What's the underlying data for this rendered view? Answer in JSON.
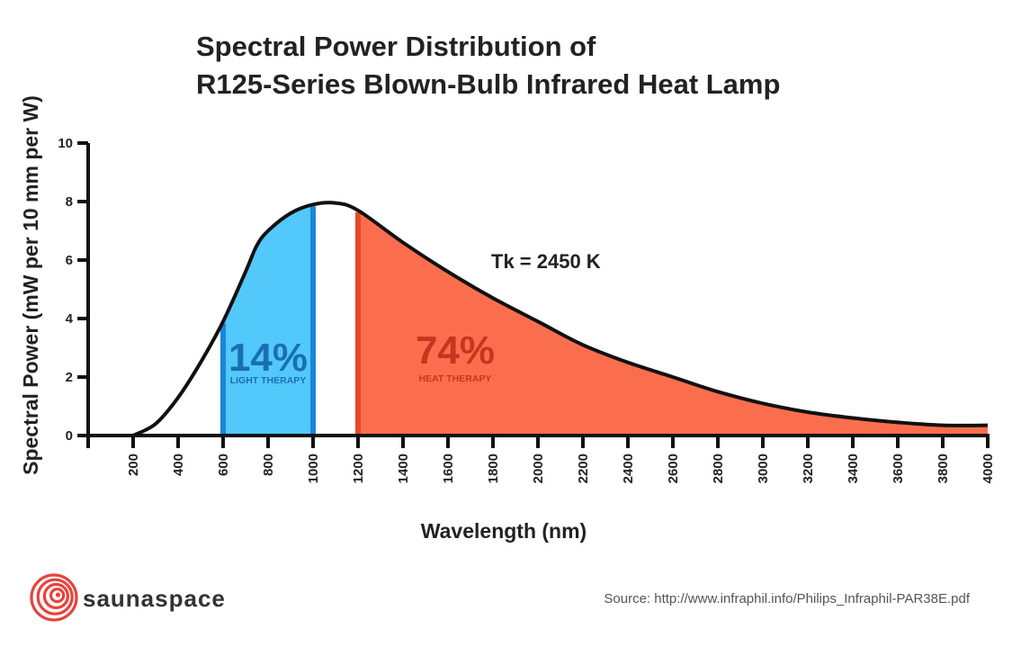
{
  "title_line1": "Spectral Power Distribution of",
  "title_line2": "R125-Series Blown-Bulb Infrared Heat Lamp",
  "annotations": {
    "light_percent": "14%",
    "light_label": "LIGHT THERAPY",
    "heat_percent": "74%",
    "heat_label": "HEAT THERAPY",
    "temperature": "Tk = 2450 K"
  },
  "colors": {
    "light_fill": "#52c8fb",
    "light_edge": "#1a86d8",
    "light_text": "#1a6fb3",
    "heat_fill": "#fb6e4d",
    "heat_edge": "#e34a2a",
    "heat_text": "#c8351f",
    "curve": "#111111",
    "brand_red": "#e8423b"
  },
  "footer": {
    "brand": "saunaspace",
    "source": "Source: http://www.infraphil.info/Philips_Infraphil-PAR38E.pdf"
  },
  "chart_data": {
    "type": "area",
    "title": "Spectral Power Distribution of R125-Series Blown-Bulb Infrared Heat Lamp",
    "xlabel": "Wavelength (nm)",
    "ylabel": "Spectral Power (mW per 10 mm per W)",
    "xlim": [
      0,
      4000
    ],
    "ylim": [
      0,
      10
    ],
    "x_ticks": [
      200,
      400,
      600,
      800,
      1000,
      1200,
      1400,
      1600,
      1800,
      2000,
      2200,
      2400,
      2600,
      2800,
      3000,
      3200,
      3400,
      3600,
      3800,
      4000
    ],
    "y_ticks": [
      0,
      2,
      4,
      6,
      8,
      10
    ],
    "grid": false,
    "series": [
      {
        "name": "Tk = 2450 K",
        "x": [
          200,
          300,
          400,
          500,
          600,
          700,
          750,
          800,
          900,
          1000,
          1100,
          1200,
          1400,
          1600,
          1800,
          2000,
          2200,
          2400,
          2600,
          2800,
          3000,
          3200,
          3400,
          3600,
          3800,
          4000
        ],
        "y": [
          0,
          0.4,
          1.3,
          2.5,
          3.9,
          5.6,
          6.5,
          7.0,
          7.6,
          7.9,
          7.95,
          7.7,
          6.6,
          5.6,
          4.7,
          3.9,
          3.1,
          2.5,
          2.0,
          1.5,
          1.1,
          0.8,
          0.6,
          0.45,
          0.35,
          0.35
        ]
      }
    ],
    "regions": [
      {
        "label": "LIGHT THERAPY",
        "percent": "14%",
        "x_start": 600,
        "x_end": 1000
      },
      {
        "label": "HEAT THERAPY",
        "percent": "74%",
        "x_start": 1200,
        "x_end": 4000
      }
    ]
  }
}
